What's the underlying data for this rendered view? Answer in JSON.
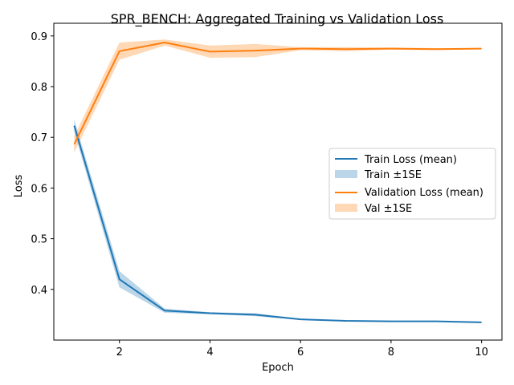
{
  "chart_data": {
    "type": "line",
    "title": "SPR_BENCH: Aggregated Training vs Validation Loss",
    "xlabel": "Epoch",
    "ylabel": "Loss",
    "xlim": [
      0.55,
      10.45
    ],
    "ylim": [
      0.3,
      0.925
    ],
    "xticks": [
      2,
      4,
      6,
      8,
      10
    ],
    "yticks": [
      0.4,
      0.5,
      0.6,
      0.7,
      0.8,
      0.9
    ],
    "grid": false,
    "legend_position": "center-right",
    "x": [
      1,
      2,
      3,
      4,
      5,
      6,
      7,
      8,
      9,
      10
    ],
    "series": [
      {
        "name": "Train Loss (mean)",
        "band_name": "Train ±1SE",
        "color": "#1f77b4",
        "band_color": "#1f77b4",
        "values": [
          0.723,
          0.42,
          0.358,
          0.353,
          0.35,
          0.341,
          0.338,
          0.337,
          0.337,
          0.335
        ],
        "se": [
          0.012,
          0.016,
          0.004,
          0.002,
          0.003,
          0.001,
          0.001,
          0.001,
          0.001,
          0.001
        ]
      },
      {
        "name": "Validation Loss (mean)",
        "band_name": "Val ±1SE",
        "color": "#ff7f0e",
        "band_color": "#ff7f0e",
        "values": [
          0.686,
          0.87,
          0.887,
          0.869,
          0.871,
          0.875,
          0.874,
          0.875,
          0.874,
          0.875
        ],
        "se": [
          0.016,
          0.017,
          0.006,
          0.012,
          0.013,
          0.003,
          0.004,
          0.002,
          0.002,
          0.001
        ]
      }
    ]
  }
}
